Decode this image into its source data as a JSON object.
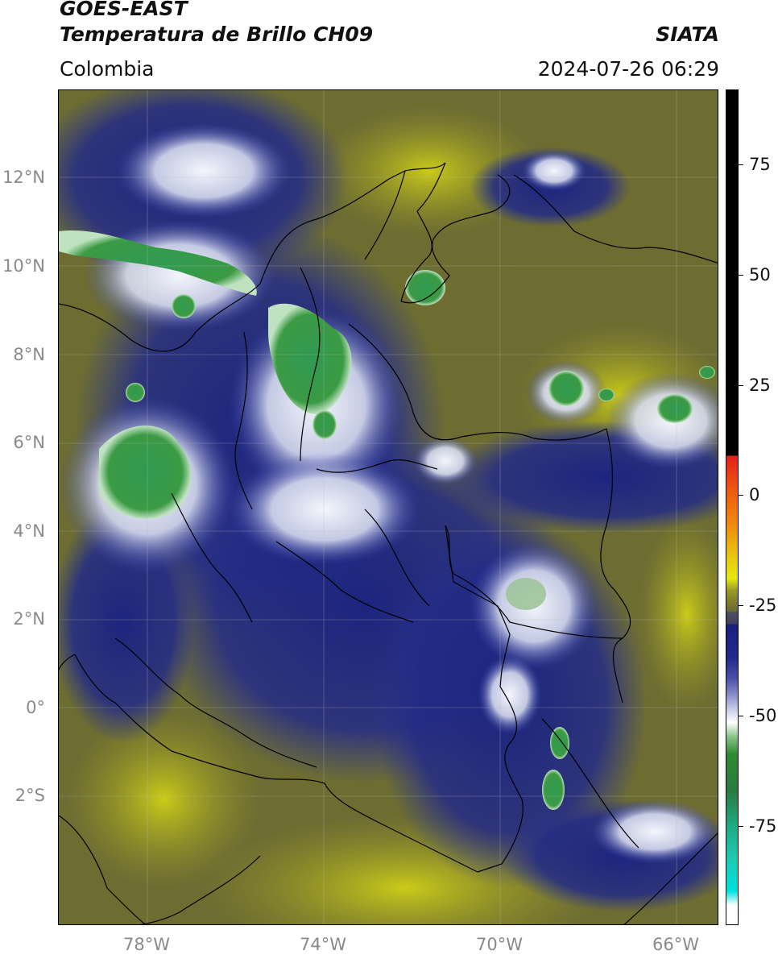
{
  "header": {
    "title": "GOES-EAST",
    "subtitle": "Temperatura de Brillo CH09",
    "organization": "SIATA",
    "region": "Colombia",
    "timestamp": "2024-07-26 06:29"
  },
  "map": {
    "latitude_labels": [
      "12°N",
      "10°N",
      "8°N",
      "6°N",
      "4°N",
      "2°N",
      "0°",
      "2°S"
    ],
    "longitude_labels": [
      "78°W",
      "74°W",
      "70°W",
      "66°W"
    ],
    "grid": true,
    "base_colors": {
      "olive": "#6b6b2e",
      "olive_light": "#8f8f2a",
      "yellow": "#c4c418",
      "navy": "#1c237a",
      "blue": "#2a3399",
      "white_cloud": "#e8ecf4",
      "green": "#3e9a45",
      "teal": "#2fb38a"
    }
  },
  "colorbar": {
    "ticks": [
      "75",
      "50",
      "25",
      "0",
      "-25",
      "-50",
      "-75"
    ],
    "colors": {
      "black": "#000000",
      "red": "#e41e1e",
      "orange": "#ee8a10",
      "yellow": "#e8e810",
      "olive": "#7a7a2a",
      "grey": "#505060",
      "navy": "#18207c",
      "lavender": "#c8cde8",
      "white": "#ffffff",
      "green": "#2e8a2e",
      "teal": "#20c8b0",
      "cyan": "#00e0e0"
    }
  }
}
